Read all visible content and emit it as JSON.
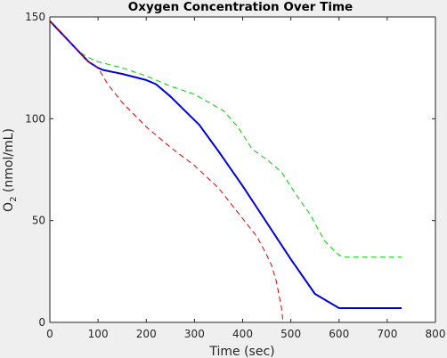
{
  "chart_data": {
    "type": "line",
    "title": "Oxygen Concentration Over Time",
    "xlabel": "Time (sec)",
    "ylabel_main": "O",
    "ylabel_sub": "2",
    "ylabel_unit": " (nmol/mL)",
    "xlim": [
      0,
      800
    ],
    "ylim": [
      0,
      150
    ],
    "xticks": [
      0,
      100,
      200,
      300,
      400,
      500,
      600,
      700,
      800
    ],
    "yticks": [
      0,
      50,
      100,
      150
    ],
    "grid": false,
    "legend": "none",
    "series": [
      {
        "color": "#00cc00",
        "style": "dashed",
        "x": [
          0,
          20,
          40,
          60,
          80,
          100,
          150,
          200,
          250,
          300,
          330,
          360,
          390,
          420,
          450,
          480,
          510,
          540,
          570,
          600,
          610,
          650,
          700,
          730
        ],
        "y": [
          148,
          143,
          138,
          133,
          130,
          128,
          125,
          121,
          116,
          112,
          108,
          104,
          96,
          85,
          80,
          74,
          63,
          53,
          40,
          33,
          32,
          32,
          32,
          32
        ]
      },
      {
        "color": "#0000dd",
        "style": "solid",
        "x": [
          0,
          20,
          40,
          60,
          80,
          100,
          110,
          150,
          200,
          220,
          250,
          280,
          310,
          350,
          400,
          450,
          500,
          550,
          600,
          610,
          650,
          700,
          730
        ],
        "y": [
          148,
          143,
          138,
          133,
          128,
          125,
          124,
          122,
          119,
          117,
          111,
          104,
          97,
          84,
          67,
          49,
          31,
          14,
          7,
          7,
          7,
          7,
          7
        ]
      },
      {
        "color": "#dd0000",
        "style": "dashed",
        "x": [
          0,
          20,
          40,
          60,
          80,
          100,
          120,
          150,
          200,
          250,
          300,
          350,
          400,
          430,
          450,
          460,
          470,
          480,
          484,
          500,
          600,
          700,
          730
        ],
        "y": [
          148,
          143,
          138,
          133,
          128,
          125,
          117,
          108,
          96,
          86,
          77,
          66,
          51,
          42,
          33,
          28,
          20,
          8,
          0,
          0,
          0,
          0,
          0
        ]
      }
    ],
    "colors": {
      "axis": "#262626",
      "text": "#262626",
      "plot_background": "#ffffff",
      "figure_background": "#efefef"
    }
  }
}
